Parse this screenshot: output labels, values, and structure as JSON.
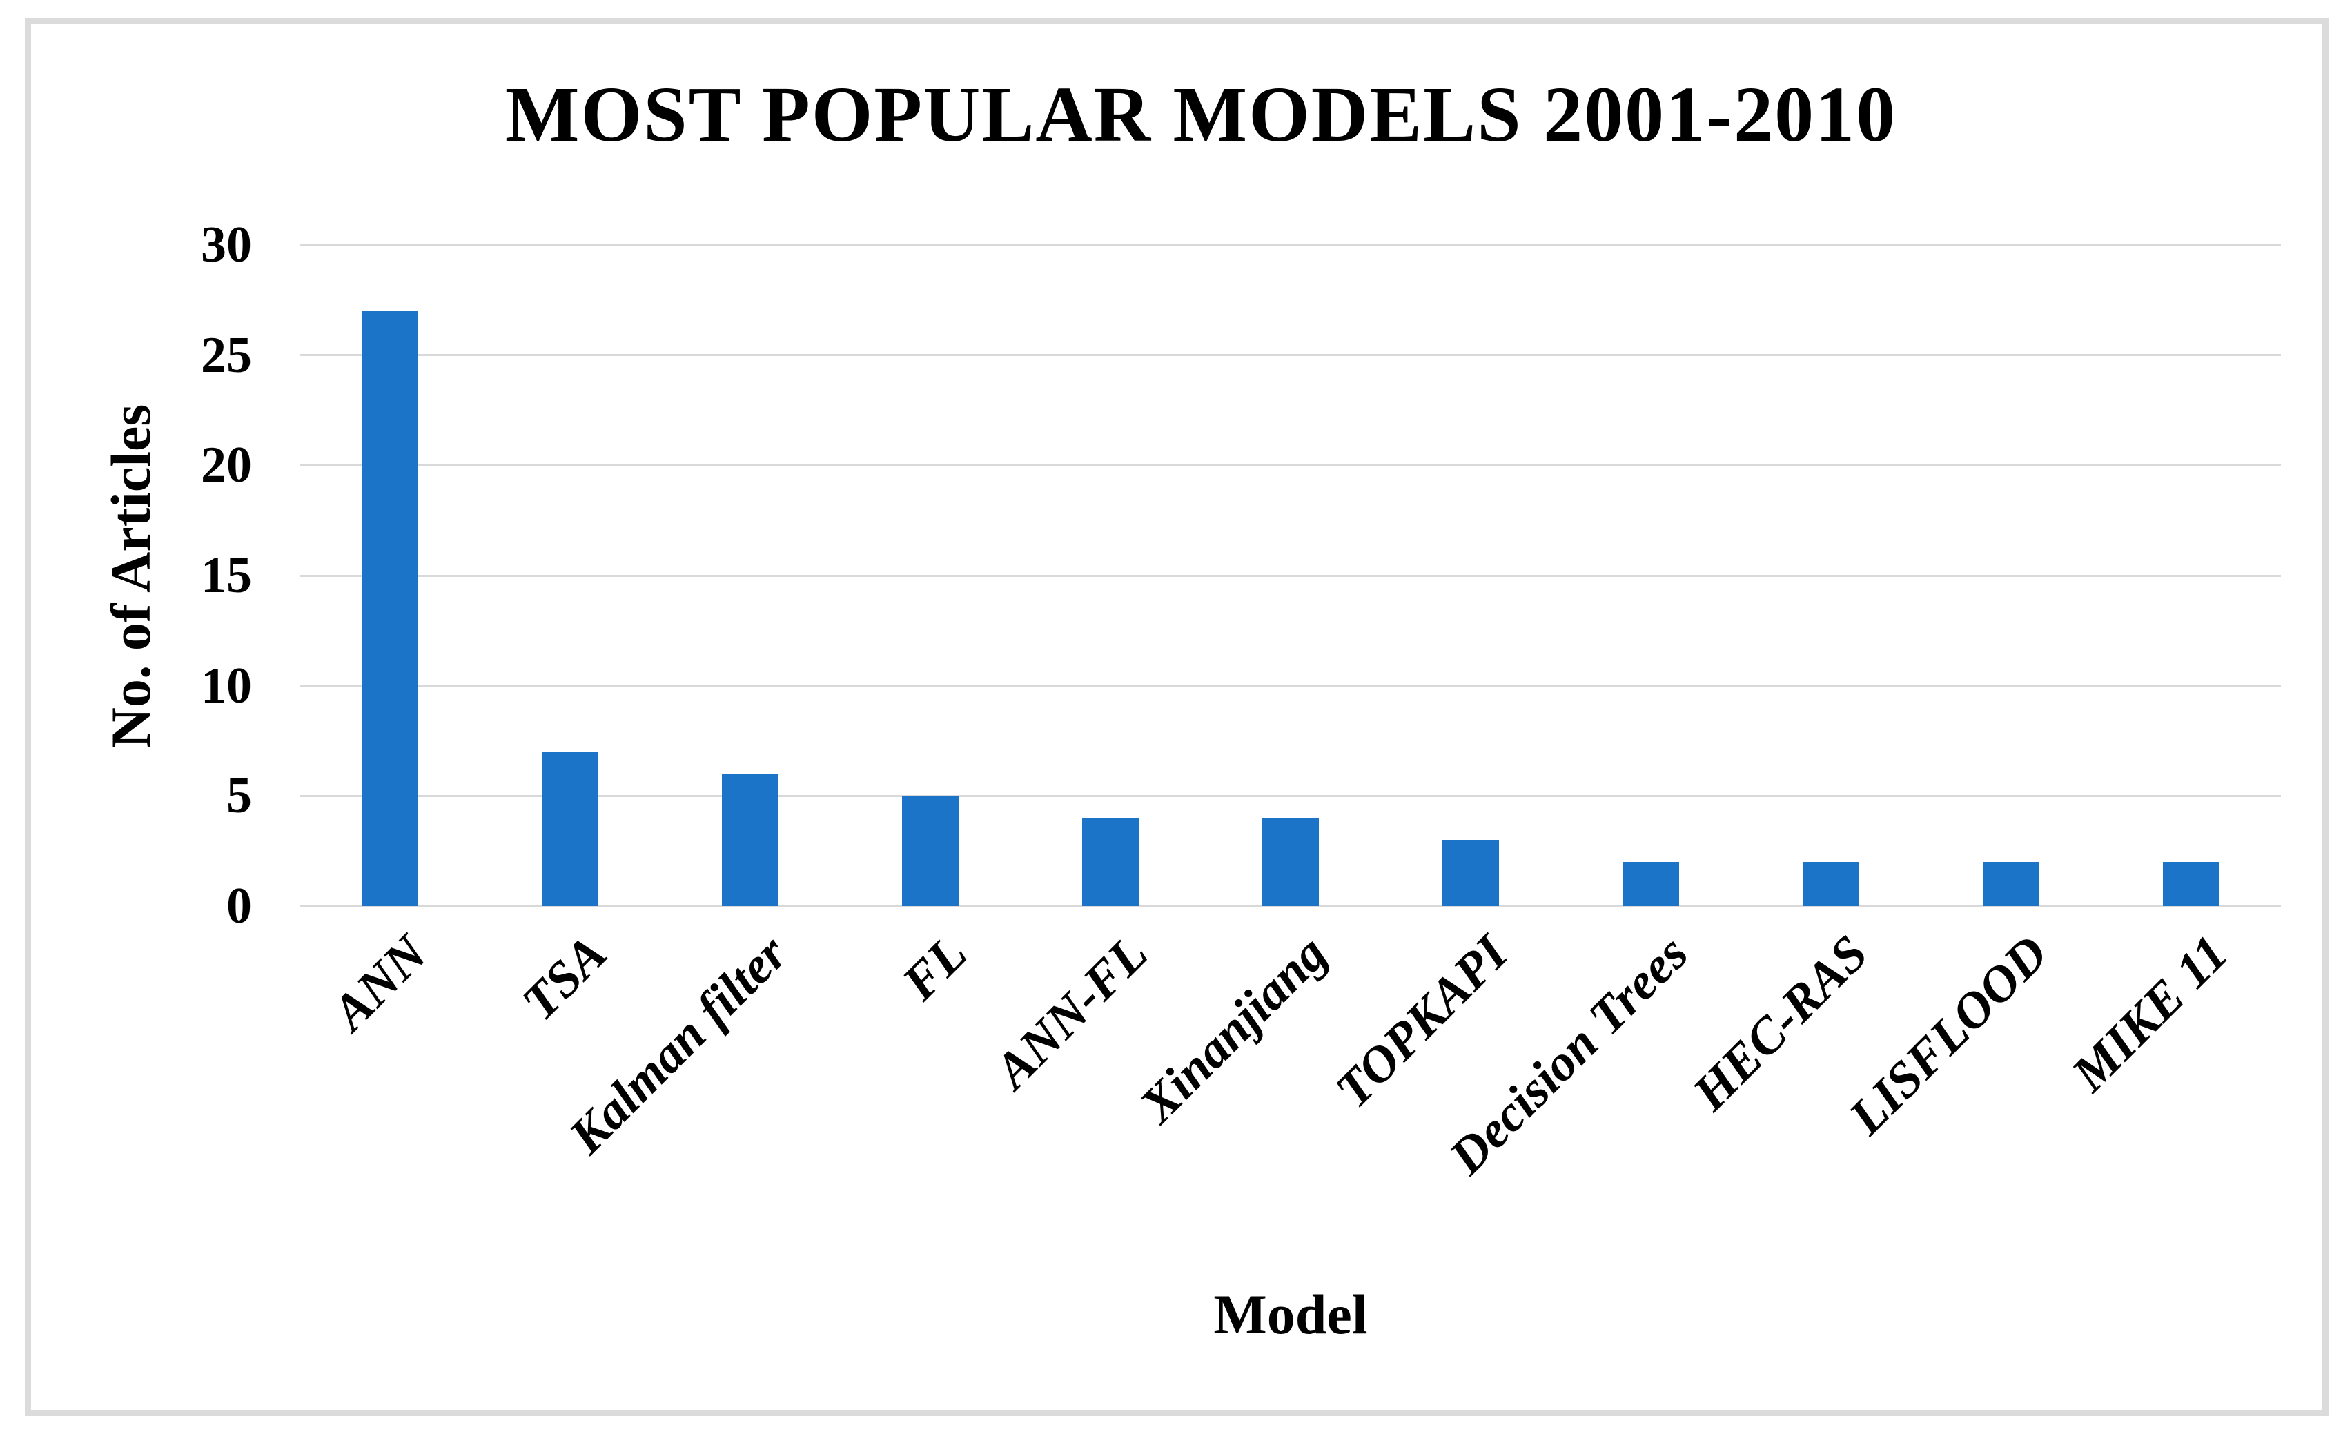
{
  "figure": {
    "background_color": "#FFFFFF",
    "border_color": "#DBDBDB"
  },
  "chart_data": {
    "type": "bar",
    "title": "MOST POPULAR MODELS 2001-2010",
    "xlabel": "Model",
    "ylabel": "No. of Articles",
    "categories": [
      "ANN",
      "TSA",
      "Kalman filter",
      "FL",
      "ANN-FL",
      "Xinanjiang",
      "TOPKAPI",
      "Decision Trees",
      "HEC-RAS",
      "LISFLOOD",
      "MIKE 11"
    ],
    "values": [
      27,
      7,
      6,
      5,
      4,
      4,
      3,
      2,
      2,
      2,
      2
    ],
    "ylim": [
      0,
      30
    ],
    "yticks": [
      0,
      5,
      10,
      15,
      20,
      25,
      30
    ],
    "grid": true,
    "legend": false,
    "bar_color": "#1B74C8",
    "gridline_color": "#D9D9D9",
    "text_color": "#000000",
    "category_label_rotation_deg": 45
  }
}
